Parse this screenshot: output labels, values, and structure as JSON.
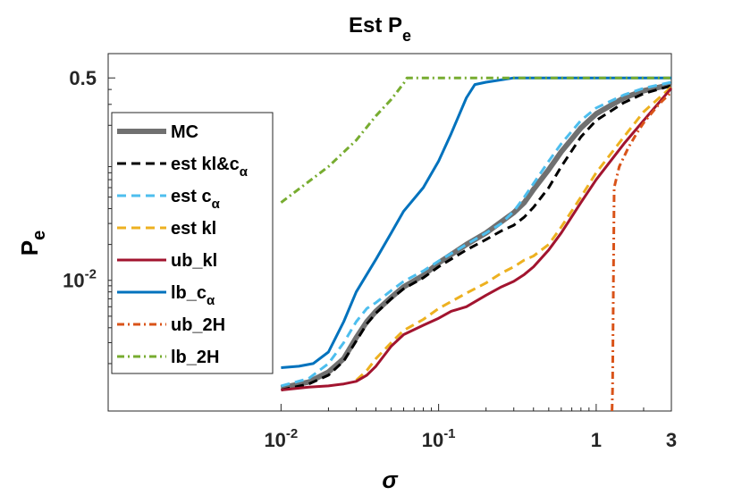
{
  "chart_data": {
    "type": "line",
    "title": "Est P",
    "title_subscript": "e",
    "xlabel": "σ",
    "ylabel": "P",
    "ylabel_subscript": "e",
    "xscale": "log",
    "yscale": "log",
    "xlim": [
      0.0008,
      3
    ],
    "ylim": [
      0.0008,
      0.8
    ],
    "grid": false,
    "legend_position": "left",
    "x_ticks": [
      {
        "value": 0.01,
        "base": "10",
        "exp": "-2"
      },
      {
        "value": 0.1,
        "base": "10",
        "exp": "-1"
      },
      {
        "value": 1,
        "base": "1",
        "exp": ""
      },
      {
        "value": 3,
        "base": "3",
        "exp": ""
      }
    ],
    "y_ticks": [
      {
        "value": 0.01,
        "base": "10",
        "exp": "-2"
      },
      {
        "value": 0.5,
        "base": "0.5",
        "exp": ""
      }
    ],
    "series": [
      {
        "name": "MC",
        "label": "MC",
        "sub": "",
        "color": "#707070",
        "width": 6,
        "dash": "",
        "points": [
          [
            0.01,
            0.00125
          ],
          [
            0.015,
            0.0014
          ],
          [
            0.02,
            0.0017
          ],
          [
            0.025,
            0.0022
          ],
          [
            0.03,
            0.0033
          ],
          [
            0.035,
            0.0045
          ],
          [
            0.04,
            0.0055
          ],
          [
            0.05,
            0.0072
          ],
          [
            0.06,
            0.0088
          ],
          [
            0.08,
            0.011
          ],
          [
            0.1,
            0.014
          ],
          [
            0.15,
            0.02
          ],
          [
            0.2,
            0.025
          ],
          [
            0.25,
            0.031
          ],
          [
            0.3,
            0.037
          ],
          [
            0.35,
            0.045
          ],
          [
            0.4,
            0.058
          ],
          [
            0.5,
            0.085
          ],
          [
            0.6,
            0.12
          ],
          [
            0.8,
            0.19
          ],
          [
            1,
            0.25
          ],
          [
            1.5,
            0.34
          ],
          [
            2,
            0.39
          ],
          [
            3,
            0.44
          ]
        ]
      },
      {
        "name": "est kl&c_alpha",
        "label": "est kl&c",
        "sub": "α",
        "color": "#000000",
        "width": 3,
        "dash": "10,6",
        "points": [
          [
            0.01,
            0.0012
          ],
          [
            0.015,
            0.00135
          ],
          [
            0.02,
            0.0016
          ],
          [
            0.025,
            0.0021
          ],
          [
            0.03,
            0.0031
          ],
          [
            0.035,
            0.0043
          ],
          [
            0.04,
            0.0053
          ],
          [
            0.05,
            0.007
          ],
          [
            0.06,
            0.0085
          ],
          [
            0.08,
            0.0105
          ],
          [
            0.1,
            0.013
          ],
          [
            0.15,
            0.018
          ],
          [
            0.2,
            0.022
          ],
          [
            0.25,
            0.026
          ],
          [
            0.3,
            0.029
          ],
          [
            0.35,
            0.034
          ],
          [
            0.4,
            0.041
          ],
          [
            0.5,
            0.06
          ],
          [
            0.6,
            0.09
          ],
          [
            0.8,
            0.16
          ],
          [
            1,
            0.22
          ],
          [
            1.5,
            0.31
          ],
          [
            2,
            0.37
          ],
          [
            3,
            0.43
          ]
        ]
      },
      {
        "name": "est c_alpha",
        "label": "est c",
        "sub": "α",
        "color": "#4DBEEE",
        "width": 3,
        "dash": "10,6",
        "points": [
          [
            0.01,
            0.0013
          ],
          [
            0.015,
            0.0015
          ],
          [
            0.02,
            0.002
          ],
          [
            0.025,
            0.003
          ],
          [
            0.03,
            0.0045
          ],
          [
            0.035,
            0.0058
          ],
          [
            0.04,
            0.0065
          ],
          [
            0.05,
            0.0082
          ],
          [
            0.06,
            0.0098
          ],
          [
            0.08,
            0.012
          ],
          [
            0.1,
            0.0145
          ],
          [
            0.15,
            0.02
          ],
          [
            0.2,
            0.025
          ],
          [
            0.25,
            0.03
          ],
          [
            0.3,
            0.038
          ],
          [
            0.35,
            0.05
          ],
          [
            0.4,
            0.065
          ],
          [
            0.5,
            0.1
          ],
          [
            0.6,
            0.14
          ],
          [
            0.8,
            0.22
          ],
          [
            1,
            0.28
          ],
          [
            1.5,
            0.36
          ],
          [
            2,
            0.41
          ],
          [
            3,
            0.46
          ]
        ]
      },
      {
        "name": "est kl",
        "label": "est kl",
        "sub": "",
        "color": "#EDB120",
        "width": 3,
        "dash": "10,6",
        "points": [
          [
            0.03,
            0.00145
          ],
          [
            0.035,
            0.00175
          ],
          [
            0.04,
            0.0022
          ],
          [
            0.05,
            0.003
          ],
          [
            0.06,
            0.0038
          ],
          [
            0.08,
            0.0047
          ],
          [
            0.1,
            0.0058
          ],
          [
            0.15,
            0.0078
          ],
          [
            0.2,
            0.0095
          ],
          [
            0.25,
            0.0115
          ],
          [
            0.3,
            0.013
          ],
          [
            0.35,
            0.0148
          ],
          [
            0.4,
            0.016
          ],
          [
            0.5,
            0.02
          ],
          [
            0.6,
            0.028
          ],
          [
            0.8,
            0.05
          ],
          [
            1,
            0.08
          ],
          [
            1.5,
            0.16
          ],
          [
            2,
            0.26
          ],
          [
            3,
            0.42
          ]
        ]
      },
      {
        "name": "ub_kl",
        "label": "ub_kl",
        "sub": "",
        "color": "#A2142F",
        "width": 3,
        "dash": "",
        "points": [
          [
            0.01,
            0.0012
          ],
          [
            0.015,
            0.00127
          ],
          [
            0.02,
            0.0013
          ],
          [
            0.025,
            0.00135
          ],
          [
            0.03,
            0.00142
          ],
          [
            0.035,
            0.0016
          ],
          [
            0.04,
            0.0019
          ],
          [
            0.05,
            0.0028
          ],
          [
            0.06,
            0.0035
          ],
          [
            0.08,
            0.0042
          ],
          [
            0.1,
            0.0048
          ],
          [
            0.12,
            0.0055
          ],
          [
            0.15,
            0.006
          ],
          [
            0.2,
            0.0075
          ],
          [
            0.25,
            0.0088
          ],
          [
            0.3,
            0.0098
          ],
          [
            0.35,
            0.0112
          ],
          [
            0.4,
            0.013
          ],
          [
            0.5,
            0.018
          ],
          [
            0.6,
            0.025
          ],
          [
            0.8,
            0.045
          ],
          [
            1,
            0.07
          ],
          [
            1.5,
            0.14
          ],
          [
            2,
            0.22
          ],
          [
            3,
            0.41
          ]
        ]
      },
      {
        "name": "lb_c_alpha",
        "label": "lb_c",
        "sub": "α",
        "color": "#0072BD",
        "width": 3,
        "dash": "",
        "points": [
          [
            0.01,
            0.00185
          ],
          [
            0.013,
            0.0019
          ],
          [
            0.016,
            0.002
          ],
          [
            0.02,
            0.0025
          ],
          [
            0.025,
            0.0045
          ],
          [
            0.03,
            0.008
          ],
          [
            0.04,
            0.015
          ],
          [
            0.05,
            0.025
          ],
          [
            0.06,
            0.038
          ],
          [
            0.08,
            0.06
          ],
          [
            0.1,
            0.1
          ],
          [
            0.12,
            0.17
          ],
          [
            0.15,
            0.34
          ],
          [
            0.17,
            0.44
          ],
          [
            0.2,
            0.46
          ],
          [
            0.3,
            0.5
          ],
          [
            3,
            0.5
          ]
        ]
      },
      {
        "name": "ub_2H",
        "label": "ub_2H",
        "sub": "",
        "color": "#D95319",
        "width": 3,
        "dash": "8,4,2,4",
        "points": [
          [
            1.26,
            0.0008
          ],
          [
            1.27,
            0.0012
          ],
          [
            1.3,
            0.06
          ],
          [
            1.4,
            0.09
          ],
          [
            1.6,
            0.13
          ],
          [
            1.8,
            0.17
          ],
          [
            2,
            0.21
          ],
          [
            2.5,
            0.3
          ],
          [
            3,
            0.38
          ]
        ]
      },
      {
        "name": "lb_2H",
        "label": "lb_2H",
        "sub": "",
        "color": "#77AC30",
        "width": 3,
        "dash": "8,4,2,4",
        "points": [
          [
            0.01,
            0.045
          ],
          [
            0.02,
            0.09
          ],
          [
            0.03,
            0.15
          ],
          [
            0.04,
            0.24
          ],
          [
            0.05,
            0.33
          ],
          [
            0.06,
            0.45
          ],
          [
            0.063,
            0.5
          ],
          [
            3,
            0.5
          ]
        ]
      }
    ]
  }
}
